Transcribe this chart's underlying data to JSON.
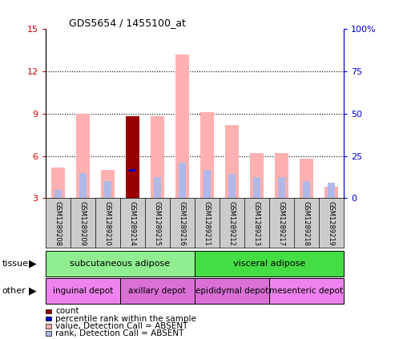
{
  "title": "GDS5654 / 1455100_at",
  "samples": [
    "GSM1289208",
    "GSM1289209",
    "GSM1289210",
    "GSM1289214",
    "GSM1289215",
    "GSM1289216",
    "GSM1289211",
    "GSM1289212",
    "GSM1289213",
    "GSM1289217",
    "GSM1289218",
    "GSM1289219"
  ],
  "value_absent": [
    5.2,
    9.0,
    5.0,
    8.8,
    8.8,
    13.2,
    9.1,
    8.2,
    6.2,
    6.2,
    5.8,
    3.8
  ],
  "rank_absent": [
    3.6,
    4.8,
    4.2,
    4.6,
    4.5,
    5.5,
    5.0,
    4.7,
    4.5,
    4.5,
    4.2,
    4.1
  ],
  "count_val": [
    0,
    0,
    0,
    8.8,
    0,
    0,
    0,
    0,
    0,
    0,
    0,
    0
  ],
  "percentile_rank": [
    0,
    0,
    0,
    5.0,
    0,
    0,
    0,
    0,
    0,
    0,
    0,
    0
  ],
  "ylim_left": [
    3,
    15
  ],
  "yticks_left": [
    3,
    6,
    9,
    12,
    15
  ],
  "ylim_right": [
    0,
    100
  ],
  "yticks_right": [
    0,
    25,
    50,
    75,
    100
  ],
  "tissue_groups": [
    {
      "label": "subcutaneous adipose",
      "start": 0,
      "end": 6,
      "color": "#90ee90"
    },
    {
      "label": "visceral adipose",
      "start": 6,
      "end": 12,
      "color": "#44dd44"
    }
  ],
  "other_groups": [
    {
      "label": "inguinal depot",
      "start": 0,
      "end": 3,
      "color": "#ee82ee"
    },
    {
      "label": "axillary depot",
      "start": 3,
      "end": 6,
      "color": "#da70d6"
    },
    {
      "label": "epididymal depot",
      "start": 6,
      "end": 9,
      "color": "#da70d6"
    },
    {
      "label": "mesenteric depot",
      "start": 9,
      "end": 12,
      "color": "#ee82ee"
    }
  ],
  "color_value_absent": "#ffb0b0",
  "color_rank_absent": "#b0b8e8",
  "color_count": "#990000",
  "color_percentile": "#0000cc",
  "bar_width": 0.55,
  "rank_bar_width": 0.3,
  "legend_items": [
    {
      "label": "count",
      "color": "#990000"
    },
    {
      "label": "percentile rank within the sample",
      "color": "#0000cc"
    },
    {
      "label": "value, Detection Call = ABSENT",
      "color": "#ffb0b0"
    },
    {
      "label": "rank, Detection Call = ABSENT",
      "color": "#b0b8e8"
    }
  ],
  "left_label_color": "#cc0000",
  "right_label_color": "#0000cc",
  "bg_xaxis": "#cccccc"
}
